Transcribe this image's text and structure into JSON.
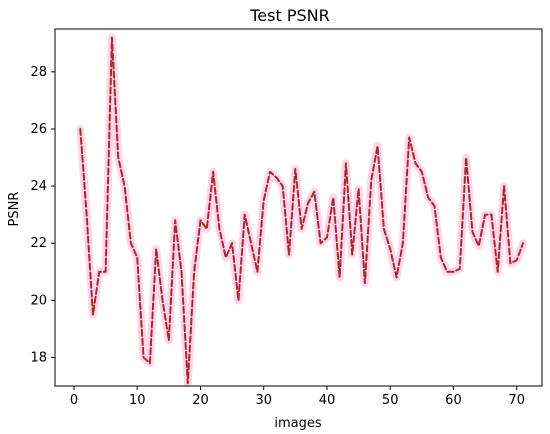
{
  "chart_data": {
    "type": "line",
    "title": "Test PSNR",
    "xlabel": "images",
    "ylabel": "PSNR",
    "xlim": [
      -3,
      74
    ],
    "ylim": [
      17,
      29.5
    ],
    "xticks": [
      0,
      10,
      20,
      30,
      40,
      50,
      60,
      70
    ],
    "yticks": [
      18,
      20,
      22,
      24,
      26,
      28
    ],
    "grid": false,
    "legend": "none",
    "colors": {
      "main_line": "#a52a2a",
      "highlight": "#ff1493",
      "axes": "#000000",
      "background": "#ffffff"
    },
    "series": [
      {
        "x": [
          1,
          2,
          3,
          4,
          5,
          6,
          7,
          8,
          9,
          10,
          11,
          12,
          13,
          14,
          15,
          16,
          17,
          18,
          19,
          20,
          21,
          22,
          23,
          24,
          25,
          26,
          27,
          28,
          29,
          30,
          31,
          32,
          33,
          34,
          35,
          36,
          37,
          38,
          39,
          40,
          41,
          42,
          43,
          44,
          45,
          46,
          47,
          48,
          49,
          50,
          51,
          52,
          53,
          54,
          55,
          56,
          57,
          58,
          59,
          60,
          61,
          62,
          63,
          64,
          65,
          66,
          67,
          68,
          69,
          70,
          71
        ],
        "values": [
          26.0,
          23.0,
          19.5,
          21.0,
          21.0,
          29.2,
          25.0,
          24.0,
          22.0,
          21.5,
          18.0,
          17.8,
          21.8,
          20.0,
          18.6,
          22.8,
          21.0,
          17.1,
          21.0,
          22.8,
          22.5,
          24.5,
          22.5,
          21.5,
          22.0,
          20.0,
          23.0,
          22.0,
          21.0,
          23.5,
          24.5,
          24.3,
          24.0,
          21.6,
          24.6,
          22.5,
          23.4,
          23.8,
          22.0,
          22.2,
          23.6,
          20.8,
          24.8,
          21.6,
          23.9,
          20.6,
          24.2,
          25.4,
          22.5,
          21.8,
          20.8,
          22.0,
          25.7,
          24.8,
          24.5,
          23.6,
          23.3,
          21.5,
          21.0,
          21.0,
          21.1,
          25.0,
          22.4,
          21.9,
          23.0,
          23.0,
          21.0,
          24.0,
          21.3,
          21.4,
          22.0
        ]
      }
    ]
  }
}
